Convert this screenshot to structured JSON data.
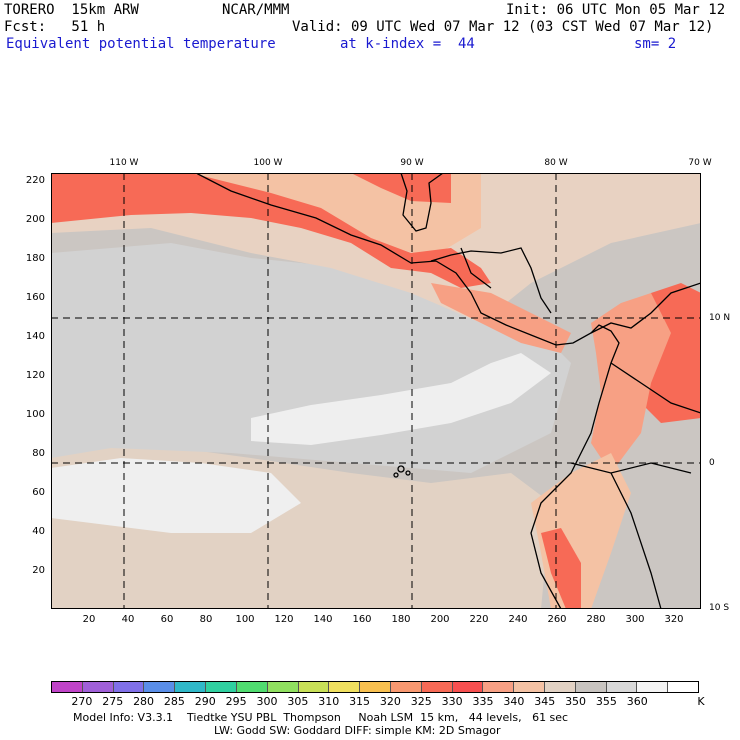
{
  "header": {
    "model": "TORERO  15km ARW",
    "org": "NCAR/MMM",
    "init": "Init: 06 UTC Mon 05 Mar 12",
    "fcst": "Fcst:   51 h",
    "valid": "Valid: 09 UTC Wed 07 Mar 12 (03 CST Wed 07 Mar 12)",
    "field": "Equivalent potential temperature",
    "level": "at k-index =  44",
    "smooth": "sm= 2"
  },
  "axes": {
    "left_ticks": [
      "220",
      "200",
      "180",
      "160",
      "140",
      "120",
      "100",
      "80",
      "60",
      "40",
      "20"
    ],
    "bottom_ticks": [
      "20",
      "40",
      "60",
      "80",
      "100",
      "120",
      "140",
      "160",
      "180",
      "200",
      "220",
      "240",
      "260",
      "280",
      "300",
      "320"
    ],
    "top_lon": [
      "110 W",
      "100 W",
      "90 W",
      "80 W",
      "70 W"
    ],
    "right_lat": [
      "10 N",
      "0",
      "10 S"
    ]
  },
  "colors": {
    "c340": "#f4c2a4",
    "c345": "#e8d2c2",
    "c350": "#cbc6c2",
    "c355": "#d2d2d2",
    "c360": "#efefef",
    "c325": "#f88466",
    "c330": "#f76a56",
    "c335": "#f7a084"
  },
  "legend": {
    "colors": [
      "#c044c8",
      "#a060d8",
      "#8070e8",
      "#5a8ee8",
      "#30b8c8",
      "#30d0a0",
      "#50dc70",
      "#90e060",
      "#c8e058",
      "#f0e060",
      "#f8c050",
      "#f89870",
      "#f76a56",
      "#f75050",
      "#f7a084",
      "#f4c2a4",
      "#e2d2c4",
      "#c8c4c0",
      "#d8d8d8",
      "#f4f4f4",
      "#ffffff"
    ],
    "labels": [
      "270",
      "275",
      "280",
      "285",
      "290",
      "295",
      "300",
      "305",
      "310",
      "315",
      "320",
      "325",
      "330",
      "335",
      "340",
      "345",
      "350",
      "355",
      "360"
    ],
    "unit": "K"
  },
  "footer": {
    "line1": "Model Info: V3.3.1    Tiedtke YSU PBL  Thompson     Noah LSM  15 km,   44 levels,   61 sec",
    "line2": "LW: Godd SW: Goddard DIFF: simple KM: 2D Smagor"
  }
}
